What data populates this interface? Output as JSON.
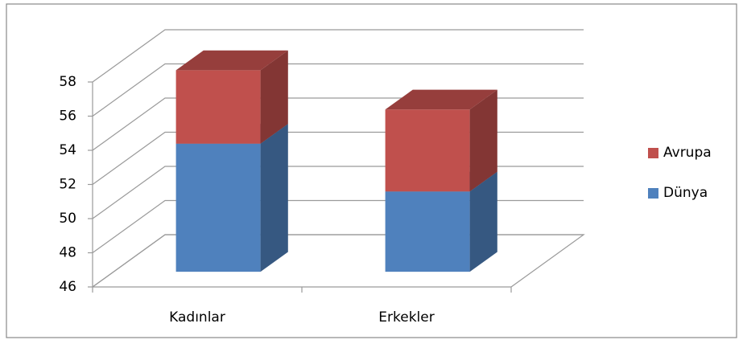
{
  "chart_data": {
    "type": "bar3d_stacked",
    "categories": [
      "Kadınlar",
      "Erkekler"
    ],
    "series": [
      {
        "name": "Dünya",
        "color": "#4f81bd",
        "values": [
          53.5,
          50.7
        ]
      },
      {
        "name": "Avrupa",
        "color": "#c0504d",
        "values": [
          4.3,
          4.8
        ]
      }
    ],
    "ylim": [
      46,
      58
    ],
    "yticks": [
      46,
      48,
      50,
      52,
      54,
      56,
      58
    ],
    "grid": true,
    "legend": "right"
  }
}
